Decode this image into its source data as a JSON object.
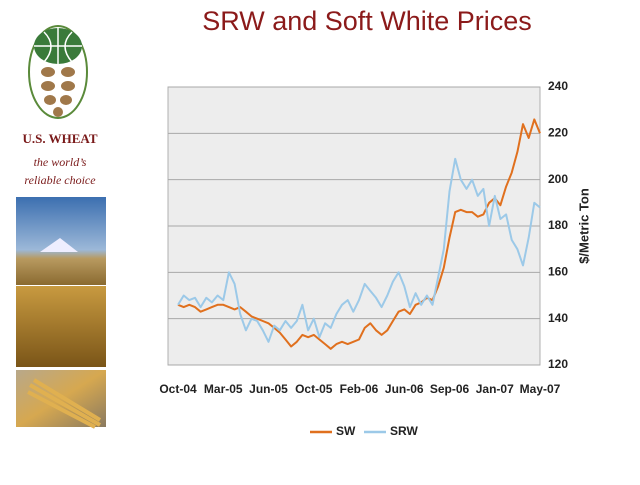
{
  "sidebar": {
    "brand": "U.S. WHEAT",
    "tagline": [
      "the world’s",
      "reliable choice"
    ]
  },
  "chart_data": {
    "type": "line",
    "title": "SRW and Soft White Prices",
    "categories": [
      "Oct-04",
      null,
      null,
      null,
      null,
      null,
      null,
      null,
      "Mar-05",
      null,
      null,
      null,
      null,
      null,
      null,
      null,
      "Jun-05",
      null,
      null,
      null,
      null,
      null,
      null,
      null,
      "Oct-05",
      null,
      null,
      null,
      null,
      null,
      null,
      null,
      "Feb-06",
      null,
      null,
      null,
      null,
      null,
      null,
      null,
      "Jun-06",
      null,
      null,
      null,
      null,
      null,
      null,
      null,
      "Sep-06",
      null,
      null,
      null,
      null,
      null,
      null,
      null,
      "Jan-07",
      null,
      null,
      null,
      null,
      null,
      null,
      null,
      "May-07"
    ],
    "series": [
      {
        "name": "SW",
        "color": "#e0701e",
        "values": [
          146,
          145,
          146,
          145,
          143,
          144,
          145,
          146,
          146,
          145,
          144,
          145,
          143,
          141,
          140,
          139,
          138,
          136,
          134,
          131,
          128,
          130,
          133,
          132,
          133,
          131,
          129,
          127,
          129,
          130,
          129,
          130,
          131,
          136,
          138,
          135,
          133,
          135,
          139,
          143,
          144,
          142,
          146,
          147,
          149,
          148,
          154,
          162,
          175,
          186,
          187,
          186,
          186,
          184,
          185,
          190,
          192,
          189,
          197,
          203,
          212,
          224,
          218,
          226,
          220
        ]
      },
      {
        "name": "SRW",
        "color": "#9cc9e8",
        "values": [
          146,
          150,
          148,
          149,
          145,
          149,
          147,
          150,
          148,
          160,
          155,
          142,
          135,
          140,
          139,
          135,
          130,
          137,
          135,
          139,
          136,
          139,
          146,
          135,
          140,
          132,
          138,
          136,
          142,
          146,
          148,
          143,
          148,
          155,
          152,
          149,
          145,
          150,
          156,
          160,
          154,
          145,
          151,
          146,
          150,
          146,
          158,
          170,
          195,
          209,
          200,
          196,
          200,
          193,
          196,
          180,
          193,
          183,
          185,
          174,
          170,
          163,
          175,
          190,
          188
        ]
      }
    ],
    "ylabel": "$/Metric Ton",
    "ylim": [
      120,
      240
    ],
    "yticks": [
      120,
      140,
      160,
      180,
      200,
      220,
      240
    ],
    "grid": true,
    "legend": "bottom"
  }
}
